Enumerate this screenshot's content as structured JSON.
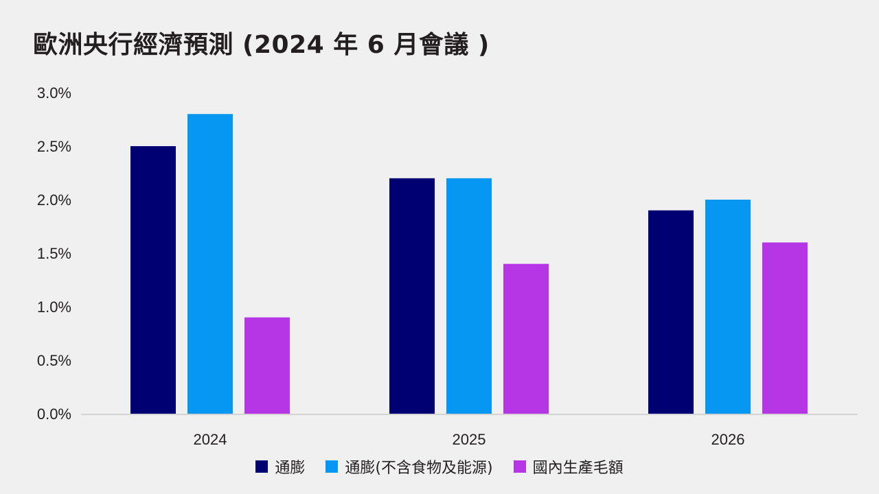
{
  "chart_data": {
    "type": "bar",
    "title": "歐洲央行經濟預測 (2024 年 6 月會議 )",
    "categories": [
      "2024",
      "2025",
      "2026"
    ],
    "series": [
      {
        "name": "通膨",
        "color": "#000072",
        "values": [
          2.5,
          2.2,
          1.9
        ]
      },
      {
        "name": "通膨(不含食物及能源)",
        "color": "#0597f2",
        "values": [
          2.8,
          2.2,
          2.0
        ]
      },
      {
        "name": "國內生產毛額",
        "color": "#b436e5",
        "values": [
          0.9,
          1.4,
          1.6
        ]
      }
    ],
    "y_ticks": [
      "0.0%",
      "0.5%",
      "1.0%",
      "1.5%",
      "2.0%",
      "2.5%",
      "3.0%"
    ],
    "ylim": [
      0,
      3.0
    ],
    "xlabel": "",
    "ylabel": "",
    "grid": false,
    "legend_position": "bottom"
  }
}
